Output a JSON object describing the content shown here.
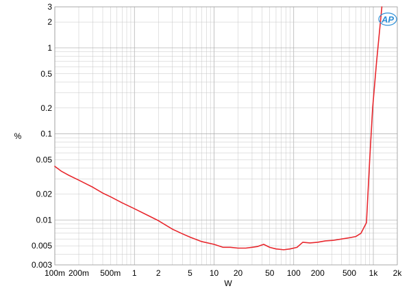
{
  "chart_data": {
    "type": "line",
    "xlabel": "W",
    "ylabel": "%",
    "x_scale": "log",
    "y_scale": "log",
    "xlim": [
      0.1,
      2000
    ],
    "ylim": [
      0.003,
      3
    ],
    "grid": true,
    "x_ticks": [
      {
        "value": 0.1,
        "label": "100m"
      },
      {
        "value": 0.2,
        "label": "200m"
      },
      {
        "value": 0.5,
        "label": "500m"
      },
      {
        "value": 1,
        "label": "1"
      },
      {
        "value": 2,
        "label": "2"
      },
      {
        "value": 5,
        "label": "5"
      },
      {
        "value": 10,
        "label": "10"
      },
      {
        "value": 20,
        "label": "20"
      },
      {
        "value": 50,
        "label": "50"
      },
      {
        "value": 100,
        "label": "100"
      },
      {
        "value": 200,
        "label": "200"
      },
      {
        "value": 500,
        "label": "500"
      },
      {
        "value": 1000,
        "label": "1k"
      },
      {
        "value": 2000,
        "label": "2k"
      }
    ],
    "y_ticks": [
      {
        "value": 0.003,
        "label": "0.003"
      },
      {
        "value": 0.005,
        "label": "0.005"
      },
      {
        "value": 0.01,
        "label": "0.01"
      },
      {
        "value": 0.02,
        "label": "0.02"
      },
      {
        "value": 0.05,
        "label": "0.05"
      },
      {
        "value": 0.1,
        "label": "0.1"
      },
      {
        "value": 0.2,
        "label": "0.2"
      },
      {
        "value": 0.5,
        "label": "0.5"
      },
      {
        "value": 1,
        "label": "1"
      },
      {
        "value": 2,
        "label": "2"
      },
      {
        "value": 3,
        "label": "3"
      }
    ],
    "series": [
      {
        "color": "#e8262c",
        "points": [
          [
            0.1,
            0.042
          ],
          [
            0.12,
            0.037
          ],
          [
            0.15,
            0.033
          ],
          [
            0.2,
            0.029
          ],
          [
            0.3,
            0.024
          ],
          [
            0.4,
            0.0205
          ],
          [
            0.5,
            0.0186
          ],
          [
            0.7,
            0.0158
          ],
          [
            1,
            0.0135
          ],
          [
            1.5,
            0.0112
          ],
          [
            2,
            0.0098
          ],
          [
            3,
            0.0078
          ],
          [
            4,
            0.0069
          ],
          [
            5,
            0.0063
          ],
          [
            7,
            0.0056
          ],
          [
            10,
            0.0052
          ],
          [
            13,
            0.0048
          ],
          [
            16,
            0.0048
          ],
          [
            20,
            0.0047
          ],
          [
            25,
            0.0047
          ],
          [
            30,
            0.0048
          ],
          [
            35,
            0.0049
          ],
          [
            42,
            0.0052
          ],
          [
            50,
            0.0048
          ],
          [
            60,
            0.0046
          ],
          [
            75,
            0.0045
          ],
          [
            90,
            0.0046
          ],
          [
            110,
            0.0048
          ],
          [
            130,
            0.0055
          ],
          [
            160,
            0.0054
          ],
          [
            200,
            0.0055
          ],
          [
            250,
            0.0057
          ],
          [
            320,
            0.0058
          ],
          [
            400,
            0.006
          ],
          [
            500,
            0.0062
          ],
          [
            600,
            0.0064
          ],
          [
            700,
            0.007
          ],
          [
            820,
            0.0093
          ],
          [
            900,
            0.05
          ],
          [
            980,
            0.2
          ],
          [
            1100,
            0.7
          ],
          [
            1280,
            3.0
          ]
        ]
      }
    ]
  },
  "logo": {
    "text": "AP",
    "color": "#2e8fd6"
  }
}
